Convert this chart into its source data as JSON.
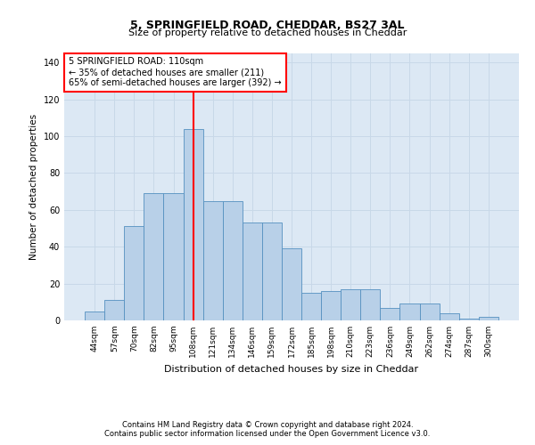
{
  "title1": "5, SPRINGFIELD ROAD, CHEDDAR, BS27 3AL",
  "title2": "Size of property relative to detached houses in Cheddar",
  "xlabel": "Distribution of detached houses by size in Cheddar",
  "ylabel": "Number of detached properties",
  "footnote1": "Contains HM Land Registry data © Crown copyright and database right 2024.",
  "footnote2": "Contains public sector information licensed under the Open Government Licence v3.0.",
  "bar_labels": [
    "44sqm",
    "57sqm",
    "70sqm",
    "82sqm",
    "95sqm",
    "108sqm",
    "121sqm",
    "134sqm",
    "146sqm",
    "159sqm",
    "172sqm",
    "185sqm",
    "198sqm",
    "210sqm",
    "223sqm",
    "236sqm",
    "249sqm",
    "262sqm",
    "274sqm",
    "287sqm",
    "300sqm"
  ],
  "bar_values": [
    5,
    11,
    51,
    69,
    69,
    104,
    65,
    65,
    53,
    53,
    39,
    15,
    16,
    17,
    17,
    7,
    9,
    9,
    4,
    1,
    2
  ],
  "bar_color": "#b8d0e8",
  "bar_edge_color": "#5590c0",
  "vline_color": "red",
  "annotation_title": "5 SPRINGFIELD ROAD: 110sqm",
  "annotation_line1": "← 35% of detached houses are smaller (211)",
  "annotation_line2": "65% of semi-detached houses are larger (392) →",
  "annotation_box_color": "white",
  "annotation_box_edge": "red",
  "ylim": [
    0,
    145
  ],
  "yticks": [
    0,
    20,
    40,
    60,
    80,
    100,
    120,
    140
  ],
  "grid_color": "#c8d8e8",
  "bg_color": "#dce8f4"
}
